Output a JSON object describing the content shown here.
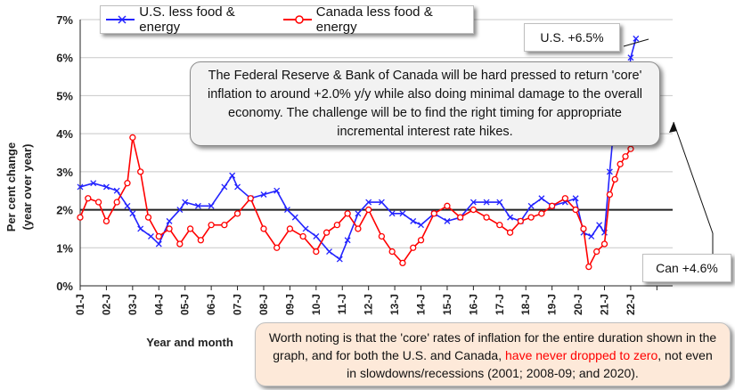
{
  "chart_data": {
    "type": "line",
    "xlabel": "Year and month",
    "ylabel": "Per cent change (year over year)",
    "ylim": [
      0,
      7
    ],
    "y_ticks": [
      "0%",
      "1%",
      "2%",
      "3%",
      "4%",
      "5%",
      "6%",
      "7%"
    ],
    "x_ticks": [
      "01-J",
      "02-J",
      "03-J",
      "04-J",
      "05-J",
      "06-J",
      "07-J",
      "08-J",
      "09-J",
      "10-J",
      "11-J",
      "12-J",
      "13-J",
      "14-J",
      "15-J",
      "16-J",
      "17-J",
      "18-J",
      "19-J",
      "20-J",
      "21-J",
      "22-J"
    ],
    "x_start_year": 2001,
    "reference_line": 2.0,
    "series": [
      {
        "name": "U.S. less food & energy",
        "color": "#2323ff",
        "marker": "x",
        "points": [
          [
            2001,
            2.6
          ],
          [
            2001.5,
            2.7
          ],
          [
            2002,
            2.6
          ],
          [
            2002.4,
            2.5
          ],
          [
            2002.8,
            2.1
          ],
          [
            2003,
            1.9
          ],
          [
            2003.3,
            1.5
          ],
          [
            2003.7,
            1.3
          ],
          [
            2004,
            1.1
          ],
          [
            2004.4,
            1.7
          ],
          [
            2004.8,
            2.0
          ],
          [
            2005,
            2.2
          ],
          [
            2005.5,
            2.1
          ],
          [
            2006,
            2.1
          ],
          [
            2006.5,
            2.6
          ],
          [
            2006.8,
            2.9
          ],
          [
            2007,
            2.6
          ],
          [
            2007.5,
            2.3
          ],
          [
            2008,
            2.4
          ],
          [
            2008.5,
            2.5
          ],
          [
            2008.9,
            2.0
          ],
          [
            2009.2,
            1.8
          ],
          [
            2009.6,
            1.5
          ],
          [
            2010,
            1.3
          ],
          [
            2010.5,
            0.9
          ],
          [
            2010.9,
            0.7
          ],
          [
            2011.2,
            1.2
          ],
          [
            2011.6,
            1.9
          ],
          [
            2012,
            2.2
          ],
          [
            2012.5,
            2.2
          ],
          [
            2012.9,
            1.9
          ],
          [
            2013.3,
            1.9
          ],
          [
            2013.7,
            1.7
          ],
          [
            2014,
            1.6
          ],
          [
            2014.5,
            1.9
          ],
          [
            2015,
            1.7
          ],
          [
            2015.5,
            1.8
          ],
          [
            2016,
            2.2
          ],
          [
            2016.5,
            2.2
          ],
          [
            2017,
            2.2
          ],
          [
            2017.4,
            1.8
          ],
          [
            2017.8,
            1.7
          ],
          [
            2018.2,
            2.1
          ],
          [
            2018.6,
            2.3
          ],
          [
            2019,
            2.1
          ],
          [
            2019.5,
            2.2
          ],
          [
            2019.9,
            2.3
          ],
          [
            2020.2,
            1.4
          ],
          [
            2020.5,
            1.3
          ],
          [
            2020.8,
            1.6
          ],
          [
            2021.0,
            1.4
          ],
          [
            2021.2,
            3.0
          ],
          [
            2021.4,
            4.5
          ],
          [
            2021.6,
            4.0
          ],
          [
            2021.8,
            4.6
          ],
          [
            2022.0,
            6.0
          ],
          [
            2022.2,
            6.5
          ]
        ]
      },
      {
        "name": "Canada less food & energy",
        "color": "#ff0000",
        "marker": "o",
        "points": [
          [
            2001,
            1.8
          ],
          [
            2001.3,
            2.3
          ],
          [
            2001.7,
            2.2
          ],
          [
            2002,
            1.7
          ],
          [
            2002.4,
            2.2
          ],
          [
            2002.8,
            2.7
          ],
          [
            2003.0,
            3.9
          ],
          [
            2003.3,
            3.0
          ],
          [
            2003.6,
            1.8
          ],
          [
            2004,
            1.3
          ],
          [
            2004.4,
            1.5
          ],
          [
            2004.8,
            1.1
          ],
          [
            2005.2,
            1.5
          ],
          [
            2005.6,
            1.2
          ],
          [
            2006,
            1.6
          ],
          [
            2006.5,
            1.6
          ],
          [
            2007,
            1.9
          ],
          [
            2007.5,
            2.3
          ],
          [
            2008,
            1.5
          ],
          [
            2008.5,
            1.0
          ],
          [
            2009,
            1.5
          ],
          [
            2009.5,
            1.3
          ],
          [
            2010,
            0.9
          ],
          [
            2010.4,
            1.4
          ],
          [
            2010.8,
            1.6
          ],
          [
            2011.2,
            1.9
          ],
          [
            2011.6,
            1.5
          ],
          [
            2012,
            2.0
          ],
          [
            2012.5,
            1.3
          ],
          [
            2012.9,
            0.9
          ],
          [
            2013.3,
            0.6
          ],
          [
            2013.7,
            1.0
          ],
          [
            2014,
            1.2
          ],
          [
            2014.5,
            1.9
          ],
          [
            2015,
            2.1
          ],
          [
            2015.5,
            1.8
          ],
          [
            2016,
            2.0
          ],
          [
            2016.5,
            1.8
          ],
          [
            2017,
            1.6
          ],
          [
            2017.4,
            1.4
          ],
          [
            2017.8,
            1.7
          ],
          [
            2018.2,
            1.8
          ],
          [
            2018.6,
            1.9
          ],
          [
            2019,
            2.1
          ],
          [
            2019.5,
            2.3
          ],
          [
            2019.9,
            2.0
          ],
          [
            2020.2,
            1.5
          ],
          [
            2020.4,
            0.5
          ],
          [
            2020.7,
            0.9
          ],
          [
            2021.0,
            1.1
          ],
          [
            2021.2,
            2.4
          ],
          [
            2021.4,
            2.8
          ],
          [
            2021.6,
            3.2
          ],
          [
            2021.8,
            3.4
          ],
          [
            2022.0,
            3.6
          ],
          [
            2022.2,
            4.6
          ]
        ]
      }
    ],
    "annotations": {
      "us_label": "U.S. +6.5%",
      "can_label": "Can +4.6%",
      "main_note": "The Federal Reserve & Bank of Canada will be hard pressed to return 'core' inflation to around +2.0% y/y while also doing minimal damage to the overall economy. The challenge will be to find the right timing for appropriate incremental interest rate hikes.",
      "bottom_note_before": "Worth noting is that the 'core' rates of inflation for the entire duration shown in the graph, and for both the U.S. and Canada, ",
      "bottom_note_highlight": "have never dropped to zero",
      "bottom_note_after": ", not even in slowdowns/recessions (2001; 2008-09; and 2020)."
    }
  }
}
